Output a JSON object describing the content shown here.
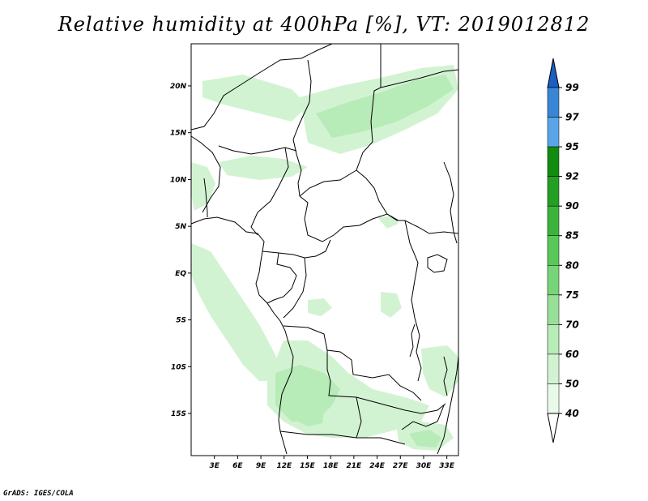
{
  "title": "Relative humidity at 400hPa [%], VT: 2019012812",
  "credit": "GrADS: IGES/COLA",
  "map": {
    "lon_range": [
      0,
      34.5
    ],
    "lat_range": [
      -19.5,
      24.5
    ],
    "lat_ticks": [
      {
        "v": 20,
        "label": "20N"
      },
      {
        "v": 15,
        "label": "15N"
      },
      {
        "v": 10,
        "label": "10N"
      },
      {
        "v": 5,
        "label": "5N"
      },
      {
        "v": 0,
        "label": "EQ"
      },
      {
        "v": -5,
        "label": "5S"
      },
      {
        "v": -10,
        "label": "10S"
      },
      {
        "v": -15,
        "label": "15S"
      }
    ],
    "lon_ticks": [
      {
        "v": 3,
        "label": "3E"
      },
      {
        "v": 6,
        "label": "6E"
      },
      {
        "v": 9,
        "label": "9E"
      },
      {
        "v": 12,
        "label": "12E"
      },
      {
        "v": 15,
        "label": "15E"
      },
      {
        "v": 18,
        "label": "18E"
      },
      {
        "v": 21,
        "label": "21E"
      },
      {
        "v": 24,
        "label": "24E"
      },
      {
        "v": 27,
        "label": "27E"
      },
      {
        "v": 30,
        "label": "30E"
      },
      {
        "v": 33,
        "label": "33E"
      }
    ]
  },
  "colorbar": {
    "levels": [
      {
        "label": "99",
        "color": "#1f78b4"
      },
      {
        "label": "97",
        "color": "#3a86d6"
      },
      {
        "label": "95",
        "color": "#5aa5e8"
      },
      {
        "label": "92",
        "color": "#118c11"
      },
      {
        "label": "90",
        "color": "#23a023"
      },
      {
        "label": "85",
        "color": "#3cb43c"
      },
      {
        "label": "80",
        "color": "#59c859"
      },
      {
        "label": "75",
        "color": "#78d478"
      },
      {
        "label": "70",
        "color": "#98e098"
      },
      {
        "label": "60",
        "color": "#b7ebb7"
      },
      {
        "label": "50",
        "color": "#d2f3d2"
      },
      {
        "label": "40",
        "color": "#eafaea"
      }
    ],
    "top_color": "#1c5fc2",
    "bottom_color": "#ffffff"
  },
  "humidity_colors": {
    "light": "#d2f3d2",
    "medium": "#b7ebb7",
    "strong": "#98e098"
  }
}
